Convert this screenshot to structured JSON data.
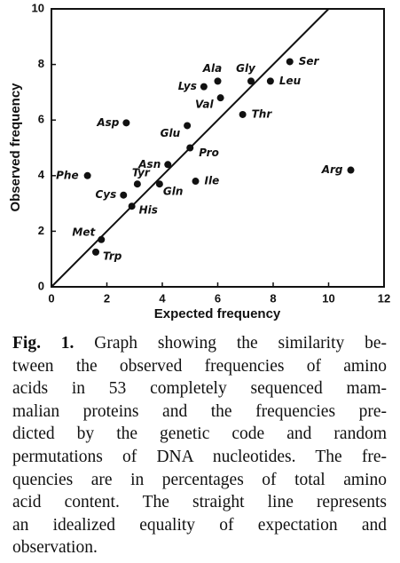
{
  "chart_data": {
    "type": "scatter",
    "xlabel": "Expected frequency",
    "ylabel": "Observed frequency",
    "xlim": [
      0,
      12
    ],
    "xticks": [
      0,
      2,
      4,
      6,
      8,
      10,
      12
    ],
    "ylim": [
      0,
      10
    ],
    "yticks": [
      0,
      2,
      4,
      6,
      8,
      10
    ],
    "color": "#111111",
    "points": [
      {
        "label": "Ser",
        "x": 8.6,
        "y": 8.1
      },
      {
        "label": "Gly",
        "x": 7.2,
        "y": 7.4
      },
      {
        "label": "Leu",
        "x": 7.9,
        "y": 7.4
      },
      {
        "label": "Ala",
        "x": 6.0,
        "y": 7.4
      },
      {
        "label": "Lys",
        "x": 5.5,
        "y": 7.2
      },
      {
        "label": "Val",
        "x": 6.1,
        "y": 6.8
      },
      {
        "label": "Thr",
        "x": 6.9,
        "y": 6.2
      },
      {
        "label": "Asp",
        "x": 2.7,
        "y": 5.9
      },
      {
        "label": "Glu",
        "x": 4.9,
        "y": 5.8
      },
      {
        "label": "Pro",
        "x": 5.0,
        "y": 5.0
      },
      {
        "label": "Asn",
        "x": 4.2,
        "y": 4.4
      },
      {
        "label": "Arg",
        "x": 10.8,
        "y": 4.2
      },
      {
        "label": "Phe",
        "x": 1.3,
        "y": 4.0
      },
      {
        "label": "Ile",
        "x": 5.2,
        "y": 3.8
      },
      {
        "label": "Tyr",
        "x": 3.1,
        "y": 3.7
      },
      {
        "label": "Gln",
        "x": 3.9,
        "y": 3.7
      },
      {
        "label": "Cys",
        "x": 2.6,
        "y": 3.3
      },
      {
        "label": "His",
        "x": 2.9,
        "y": 2.9
      },
      {
        "label": "Met",
        "x": 1.8,
        "y": 1.7
      },
      {
        "label": "Trp",
        "x": 1.6,
        "y": 1.25
      }
    ]
  },
  "caption": {
    "label": "Fig. 1.",
    "lines": [
      "Graph showing the similarity be-",
      "tween the observed frequencies of amino",
      "acids in 53 completely sequenced mam-",
      "malian proteins and the frequencies pre-",
      "dicted by the genetic code and random",
      "permutations of DNA nucleotides. The fre-",
      "quencies are in percentages of total amino",
      "acid content. The straight line represents",
      "an idealized equality of expectation and",
      "observation."
    ]
  }
}
